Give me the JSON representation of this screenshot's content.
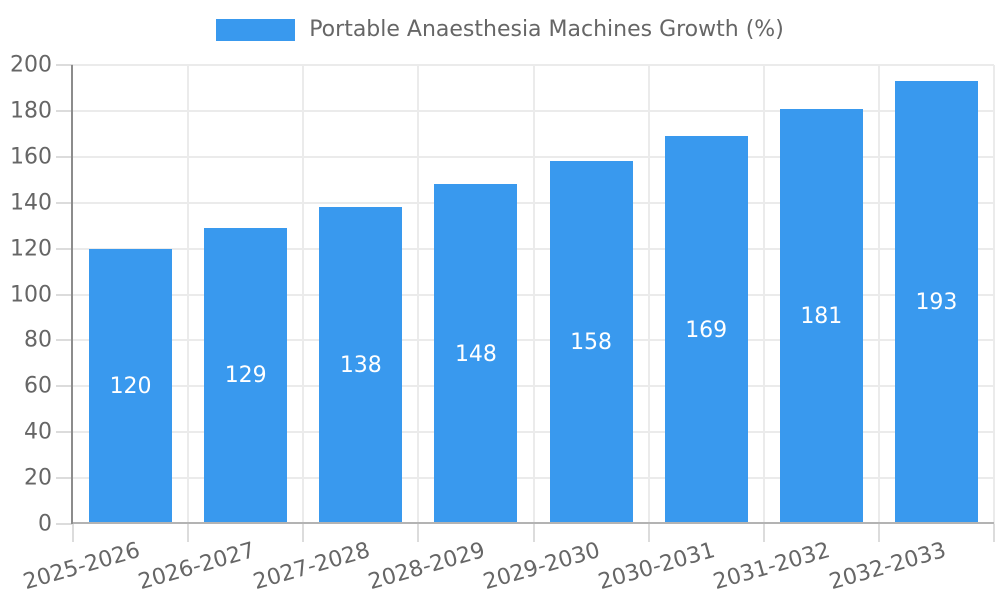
{
  "chart_data": {
    "type": "bar",
    "title": "Portable Anaesthesia Machines Growth (%)",
    "categories": [
      "2025-2026",
      "2026-2027",
      "2027-2028",
      "2028-2029",
      "2029-2030",
      "2030-2031",
      "2031-2032",
      "2032-2033"
    ],
    "values": [
      120,
      129,
      138,
      148,
      158,
      169,
      181,
      193
    ],
    "value_labels": [
      "120",
      "129",
      "138",
      "148",
      "158",
      "169",
      "181",
      "193"
    ],
    "yticks": [
      0,
      20,
      40,
      60,
      80,
      100,
      120,
      140,
      160,
      180,
      200
    ],
    "ylim": [
      0,
      200
    ],
    "xlabel": "",
    "ylabel": "",
    "grid": true,
    "legend_position": "top",
    "x_tick_rotation_deg": -16
  },
  "colors": {
    "bar": "#3999EE",
    "text": "#666666",
    "value_label": "#FFFFFF",
    "gridline": "#EBEBEB",
    "tick": "#DCDCDC",
    "y_axis_line": "#8C8C8C",
    "x_axis_line": "#B3B3B3",
    "background": "#FFFFFF"
  }
}
